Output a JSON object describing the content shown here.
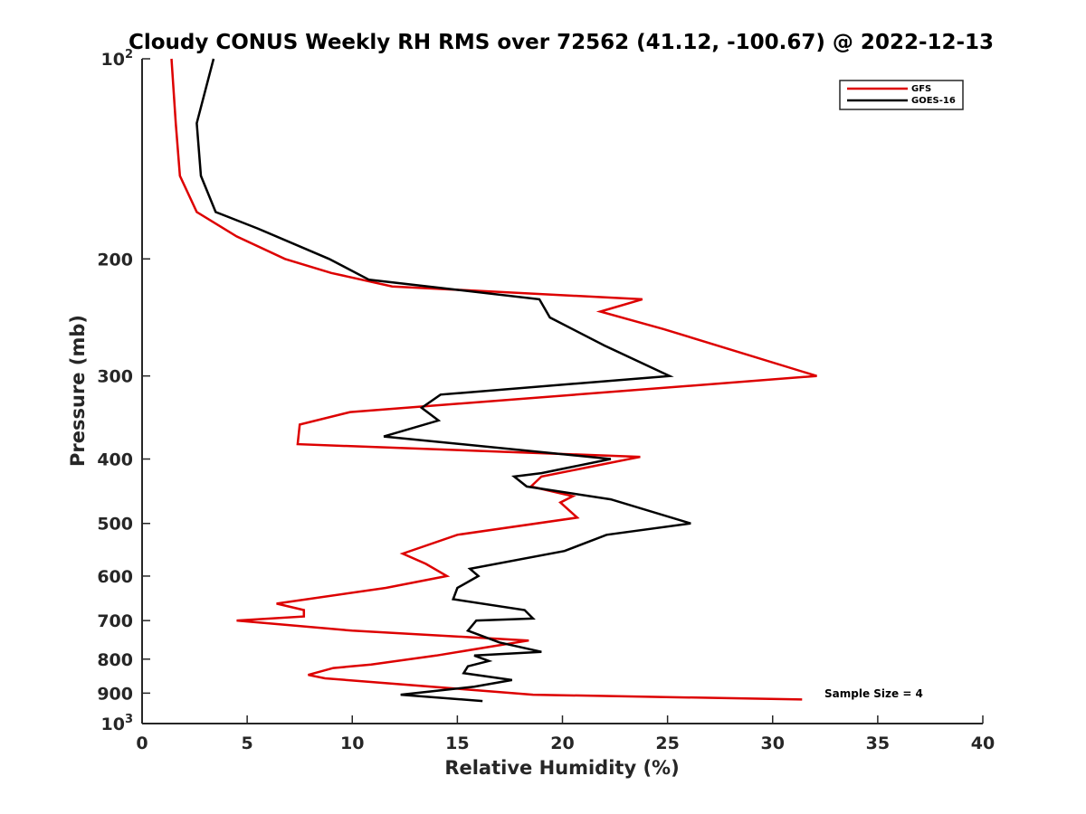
{
  "chart_data": {
    "type": "line",
    "title": "Cloudy CONUS Weekly RH RMS over 72562 (41.12, -100.67) @ 2022-12-13",
    "xlabel": "Relative Humidity (%)",
    "ylabel": "Pressure (mb)",
    "xlim": [
      0,
      40
    ],
    "ylim": [
      100,
      1000
    ],
    "yscale": "log",
    "y_reversed": true,
    "grid": false,
    "legend_position": "top-right",
    "xticks": [
      "0",
      "5",
      "10",
      "15",
      "20",
      "25",
      "30",
      "35",
      "40"
    ],
    "yticks": [
      {
        "value": 100,
        "base": "10",
        "exp": "2"
      },
      {
        "value": 200,
        "base": "200",
        "exp": ""
      },
      {
        "value": 300,
        "base": "300",
        "exp": ""
      },
      {
        "value": 400,
        "base": "400",
        "exp": ""
      },
      {
        "value": 500,
        "base": "500",
        "exp": ""
      },
      {
        "value": 600,
        "base": "600",
        "exp": ""
      },
      {
        "value": 700,
        "base": "700",
        "exp": ""
      },
      {
        "value": 800,
        "base": "800",
        "exp": ""
      },
      {
        "value": 900,
        "base": "900",
        "exp": ""
      },
      {
        "value": 1000,
        "base": "10",
        "exp": "3"
      }
    ],
    "annotation": "Sample Size = 4",
    "series": [
      {
        "name": "GFS",
        "color": "#dd0000",
        "x": [
          1.4,
          1.6,
          1.8,
          2.6,
          4.5,
          6.8,
          9.0,
          11.9,
          23.8,
          21.8,
          24.8,
          32.1,
          9.9,
          7.5,
          7.4,
          23.7,
          19.0,
          18.5,
          20.5,
          19.9,
          20.7,
          15.0,
          12.4,
          13.5,
          14.5,
          11.6,
          6.4,
          7.7,
          7.7,
          4.5,
          10.0,
          18.4,
          16.7,
          14.0,
          10.9,
          9.1,
          7.9,
          8.7,
          18.6,
          31.4
        ],
        "y": [
          100,
          125,
          150,
          170,
          185,
          200,
          210,
          220,
          230,
          240,
          255,
          300,
          340,
          355,
          380,
          397,
          425,
          440,
          455,
          465,
          490,
          520,
          555,
          575,
          600,
          625,
          660,
          675,
          690,
          700,
          725,
          750,
          765,
          790,
          815,
          825,
          845,
          855,
          905,
          920
        ]
      },
      {
        "name": "GOES-16",
        "color": "#000000",
        "x": [
          3.4,
          2.6,
          2.8,
          3.5,
          5.5,
          8.9,
          10.8,
          18.9,
          19.4,
          22.0,
          25.1,
          14.2,
          13.3,
          14.1,
          11.5,
          22.3,
          19.0,
          17.7,
          18.3,
          22.3,
          26.1,
          22.1,
          20.1,
          15.6,
          16.0,
          15.0,
          14.8,
          18.2,
          18.6,
          15.9,
          15.5,
          17.0,
          19.0,
          15.8,
          16.5,
          15.5,
          15.3,
          17.6,
          15.8,
          12.3,
          16.2
        ],
        "y": [
          100,
          125,
          150,
          170,
          180,
          200,
          215,
          230,
          245,
          270,
          300,
          320,
          335,
          350,
          370,
          400,
          420,
          425,
          440,
          460,
          500,
          520,
          550,
          585,
          600,
          625,
          650,
          675,
          695,
          700,
          725,
          755,
          780,
          790,
          805,
          820,
          840,
          860,
          880,
          905,
          925
        ]
      }
    ]
  }
}
